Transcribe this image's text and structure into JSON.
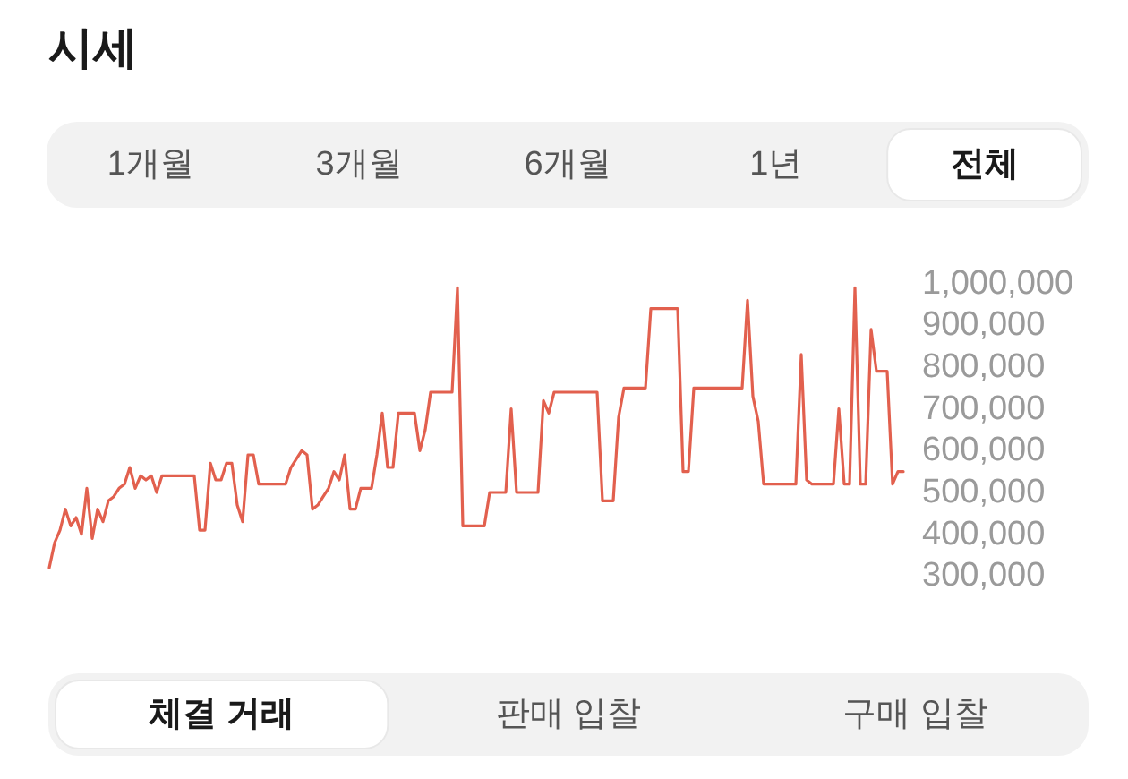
{
  "chart_data": {
    "type": "line",
    "title": "시세",
    "annotations": [
      "1개월",
      "3개월",
      "6개월",
      "1년",
      "전체",
      "체결 거래",
      "판매 입찰",
      "구매 입찰"
    ],
    "categories": [
      null,
      null,
      null,
      null,
      null,
      null,
      null,
      null,
      null,
      null,
      null,
      null,
      null,
      null,
      null,
      null,
      null,
      null,
      null,
      null,
      null,
      null,
      null,
      null,
      null,
      null,
      null,
      null,
      null,
      null,
      null,
      null,
      null,
      null,
      null,
      null,
      null,
      null,
      null,
      null,
      null,
      null,
      null,
      null,
      null,
      null,
      null,
      null,
      null,
      null,
      null,
      null,
      null,
      null,
      null,
      null,
      null,
      null,
      null,
      null,
      null,
      null,
      null,
      null,
      null,
      null,
      null,
      null,
      null,
      null,
      null,
      null,
      null,
      null,
      null,
      null,
      null,
      null,
      null,
      null,
      null,
      null,
      null,
      null,
      null,
      null,
      null,
      null,
      null,
      null,
      null,
      null,
      null,
      null,
      null,
      null,
      null,
      null,
      null,
      null,
      null,
      null,
      null,
      null,
      null,
      null,
      null,
      null,
      null,
      null,
      null,
      null,
      null,
      null,
      null,
      null,
      null,
      null,
      null,
      null,
      null,
      null,
      null,
      null,
      null,
      null,
      null,
      null,
      null,
      null,
      null,
      null,
      null,
      null,
      null,
      null,
      null,
      null,
      null,
      null,
      null,
      null,
      null,
      null,
      null,
      null,
      null,
      null,
      null,
      null,
      null,
      null,
      null,
      null,
      null,
      null,
      null,
      null,
      null,
      null
    ],
    "values": [
      320000,
      380000,
      410000,
      460000,
      420000,
      440000,
      400000,
      510000,
      390000,
      460000,
      430000,
      480000,
      490000,
      510000,
      520000,
      560000,
      510000,
      540000,
      530000,
      540000,
      500000,
      540000,
      540000,
      540000,
      540000,
      540000,
      540000,
      540000,
      410000,
      410000,
      570000,
      530000,
      530000,
      570000,
      570000,
      470000,
      430000,
      590000,
      590000,
      520000,
      520000,
      520000,
      520000,
      520000,
      520000,
      560000,
      580000,
      600000,
      590000,
      460000,
      470000,
      490000,
      510000,
      550000,
      530000,
      590000,
      460000,
      460000,
      510000,
      510000,
      510000,
      590000,
      690000,
      560000,
      560000,
      690000,
      690000,
      690000,
      690000,
      600000,
      650000,
      740000,
      740000,
      740000,
      740000,
      740000,
      990000,
      420000,
      420000,
      420000,
      420000,
      420000,
      500000,
      500000,
      500000,
      500000,
      700000,
      500000,
      500000,
      500000,
      500000,
      500000,
      720000,
      690000,
      740000,
      740000,
      740000,
      740000,
      740000,
      740000,
      740000,
      740000,
      740000,
      480000,
      480000,
      480000,
      680000,
      750000,
      750000,
      750000,
      750000,
      750000,
      940000,
      940000,
      940000,
      940000,
      940000,
      940000,
      550000,
      550000,
      750000,
      750000,
      750000,
      750000,
      750000,
      750000,
      750000,
      750000,
      750000,
      750000,
      960000,
      730000,
      670000,
      520000,
      520000,
      520000,
      520000,
      520000,
      520000,
      520000,
      830000,
      530000,
      520000,
      520000,
      520000,
      520000,
      520000,
      700000,
      520000,
      520000,
      990000,
      520000,
      520000,
      890000,
      790000,
      790000,
      790000,
      520000,
      550000,
      550000
    ],
    "color": "#e2604e",
    "ylim": [
      300000,
      1000000
    ],
    "yticks": [
      {
        "value": 1000000,
        "label": "1,000,000"
      },
      {
        "value": 900000,
        "label": "900,000"
      },
      {
        "value": 800000,
        "label": "800,000"
      },
      {
        "value": 700000,
        "label": "700,000"
      },
      {
        "value": 600000,
        "label": "600,000"
      },
      {
        "value": 500000,
        "label": "500,000"
      },
      {
        "value": 400000,
        "label": "400,000"
      },
      {
        "value": 300000,
        "label": "300,000"
      }
    ],
    "tick_labels": "y"
  }
}
